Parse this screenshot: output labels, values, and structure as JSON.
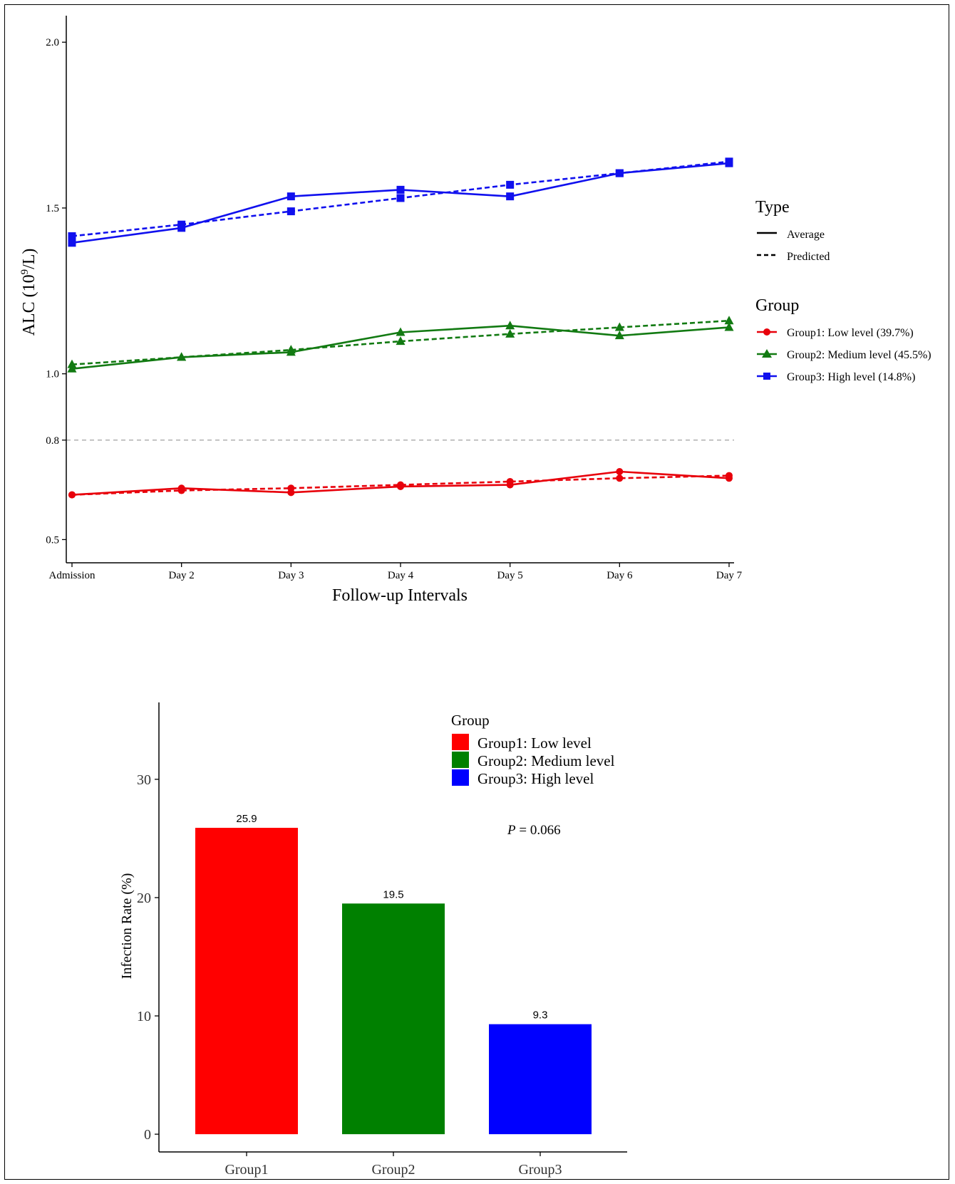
{
  "chart_data": [
    {
      "type": "line",
      "xlabel": "Follow-up Intervals",
      "ylabel": "ALC (10⁹/L)",
      "categories": [
        "Admission",
        "Day 2",
        "Day 3",
        "Day 4",
        "Day 5",
        "Day 6",
        "Day 7"
      ],
      "y_tick_values": [
        0.5,
        0.8,
        1.0,
        1.5,
        2.0
      ],
      "y_tick_labels": [
        "0.5",
        "0.8",
        "1.0",
        "1.5",
        "2.0"
      ],
      "reference_line": 0.8,
      "ylim": [
        0.43,
        2.08
      ],
      "legend_type": {
        "title": "Type",
        "items": [
          "Average",
          "Predicted"
        ]
      },
      "legend_group": {
        "title": "Group",
        "items": [
          "Group1: Low level (39.7%)",
          "Group2: Medium level (45.5%)",
          "Group3: High level (14.8%)"
        ]
      },
      "series": [
        {
          "group": 0,
          "type": "Average",
          "color": "#e8000b",
          "marker": "circle",
          "values": [
            0.635,
            0.655,
            0.642,
            0.66,
            0.665,
            0.705,
            0.685
          ]
        },
        {
          "group": 0,
          "type": "Predicted",
          "color": "#e8000b",
          "marker": "circle",
          "values": [
            0.635,
            0.648,
            0.655,
            0.665,
            0.675,
            0.685,
            0.693
          ]
        },
        {
          "group": 1,
          "type": "Average",
          "color": "#127a12",
          "marker": "triangle",
          "values": [
            1.015,
            1.05,
            1.065,
            1.125,
            1.145,
            1.115,
            1.14
          ]
        },
        {
          "group": 1,
          "type": "Predicted",
          "color": "#127a12",
          "marker": "triangle",
          "values": [
            1.028,
            1.05,
            1.072,
            1.098,
            1.12,
            1.14,
            1.16
          ]
        },
        {
          "group": 2,
          "type": "Average",
          "color": "#1010ee",
          "marker": "square",
          "values": [
            1.395,
            1.44,
            1.535,
            1.555,
            1.535,
            1.605,
            1.635
          ]
        },
        {
          "group": 2,
          "type": "Predicted",
          "color": "#1010ee",
          "marker": "square",
          "values": [
            1.415,
            1.45,
            1.49,
            1.53,
            1.57,
            1.605,
            1.64
          ]
        }
      ]
    },
    {
      "type": "bar",
      "ylabel": "Infection Rate (%)",
      "categories": [
        "Group1",
        "Group2",
        "Group3"
      ],
      "values": [
        25.9,
        19.5,
        9.3
      ],
      "value_labels": [
        "25.9",
        "19.5",
        "9.3"
      ],
      "colors": [
        "#ff0000",
        "#008000",
        "#0000ff"
      ],
      "y_ticks": [
        0,
        10,
        20,
        30
      ],
      "ylim": [
        -1.5,
        36.5
      ],
      "legend": {
        "title": "Group",
        "items": [
          "Group1: Low level",
          "Group2: Medium level",
          "Group3: High level"
        ]
      },
      "annotation": {
        "italic": "P",
        "rest": " = 0.066"
      }
    }
  ]
}
